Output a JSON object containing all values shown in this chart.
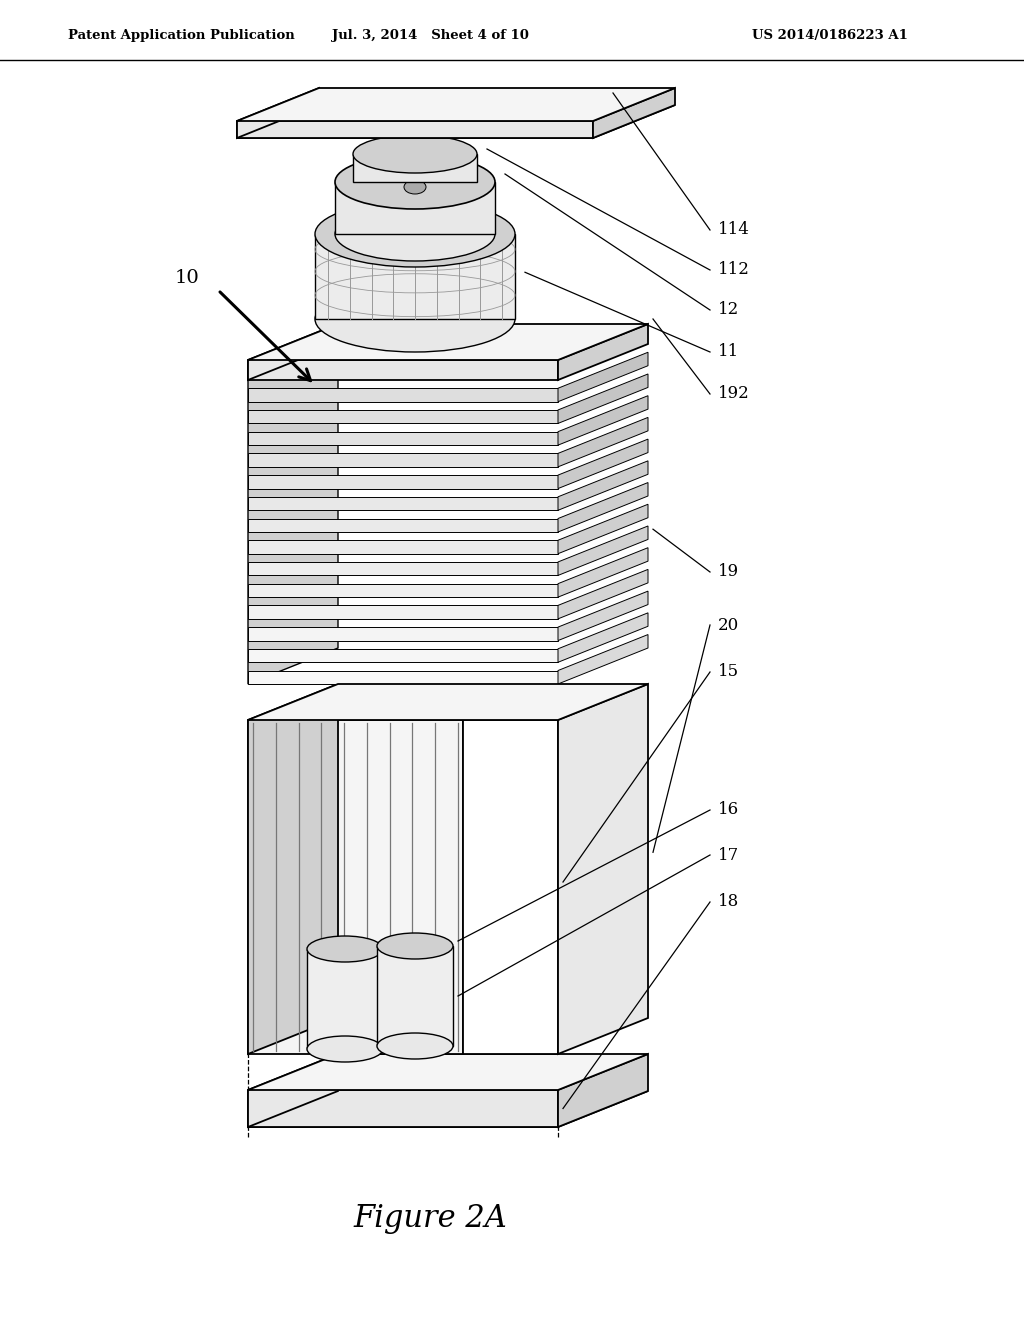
{
  "background": "#ffffff",
  "header_left": "Patent Application Publication",
  "header_mid": "Jul. 3, 2014   Sheet 4 of 10",
  "header_right": "US 2014/0186223 A1",
  "figure_title": "Figure 2A",
  "line_color": "#000000",
  "fill_light": "#f5f5f5",
  "fill_mid": "#e8e8e8",
  "fill_dark": "#d0d0d0",
  "label_fontsize": 12,
  "title_fontsize": 22,
  "header_fontsize": 9.5
}
